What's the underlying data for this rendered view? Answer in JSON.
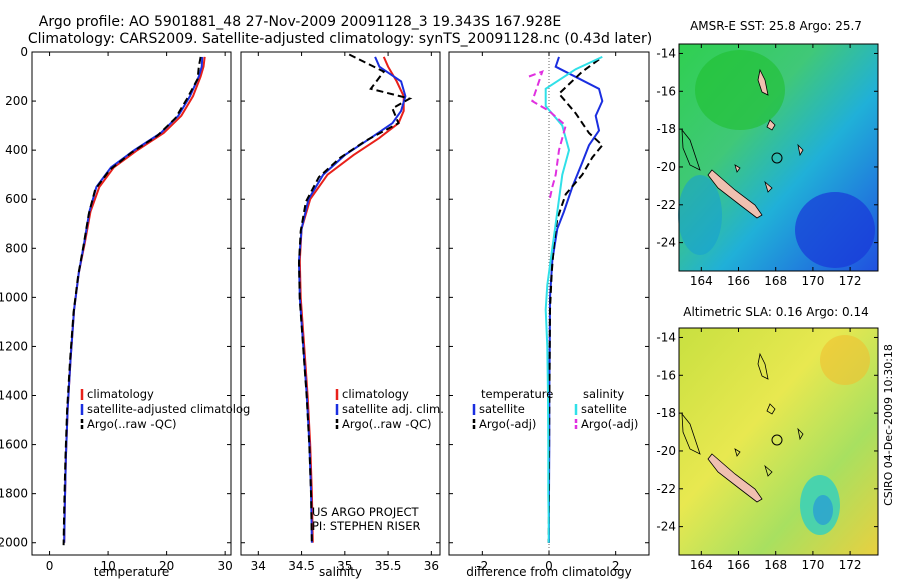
{
  "title_line1": "Argo profile: AO 5901881_48 27-Nov-2009 20091128_3 19.343S 167.928E",
  "title_line2": "Climatology: CARS2009. Satellite-adjusted climatology: synTS_20091128.nc (0.43d later)",
  "side_label": "CSIRO 04-Dec-2009 10:30:18",
  "colors": {
    "climatology": "#e8201a",
    "satellite": "#1a2ee0",
    "argo": "#000000",
    "sal_satellite": "#30e0e8",
    "sal_argo": "#e030e0"
  },
  "chart_data": [
    {
      "type": "line",
      "xlabel": "temperature",
      "xlim": [
        -3,
        31
      ],
      "ylim": [
        2050,
        0
      ],
      "xticks": [
        "0",
        "10",
        "20",
        "30"
      ],
      "xtick_values": [
        0,
        10,
        20,
        30
      ],
      "yticks": [
        "0",
        "200",
        "400",
        "600",
        "800",
        "1000",
        "1200",
        "1400",
        "1600",
        "1800",
        "2000"
      ],
      "ytick_values": [
        0,
        200,
        400,
        600,
        800,
        1000,
        1200,
        1400,
        1600,
        1800,
        2000
      ],
      "legend": [
        "climatology",
        "satellite-adjusted climatolog",
        "Argo(..raw -QC)"
      ],
      "series": [
        {
          "name": "climatology",
          "style": "solid",
          "color": "#e8201a",
          "x": [
            26.5,
            26.3,
            25.8,
            24.5,
            22.5,
            19.5,
            15,
            11,
            8.5,
            7,
            6,
            5,
            4.2,
            3.6,
            3.1,
            2.8,
            2.6,
            2.5
          ],
          "y": [
            20,
            60,
            100,
            180,
            260,
            330,
            400,
            470,
            550,
            650,
            780,
            900,
            1050,
            1250,
            1450,
            1650,
            1850,
            2000
          ]
        },
        {
          "name": "satellite-adjusted climatolog",
          "style": "solid",
          "color": "#1a2ee0",
          "x": [
            26.1,
            26,
            25.5,
            24,
            22,
            19,
            14.5,
            10.5,
            8,
            6.8,
            5.9,
            5,
            4.2,
            3.6,
            3.1,
            2.8,
            2.6,
            2.5
          ],
          "y": [
            20,
            60,
            100,
            180,
            260,
            330,
            400,
            470,
            550,
            650,
            780,
            900,
            1050,
            1250,
            1450,
            1650,
            1850,
            2000
          ]
        },
        {
          "name": "Argo(..raw -QC)",
          "style": "dashed",
          "color": "#000000",
          "x": [
            25.8,
            25.5,
            25.3,
            23.5,
            21.5,
            18.5,
            14,
            10.3,
            7.8,
            6.7,
            5.8,
            4.9,
            4.1,
            3.5,
            3.0,
            2.7,
            2.5,
            2.4
          ],
          "y": [
            20,
            60,
            110,
            190,
            270,
            340,
            410,
            480,
            560,
            660,
            790,
            910,
            1060,
            1260,
            1460,
            1660,
            1860,
            2010
          ]
        }
      ]
    },
    {
      "type": "line",
      "xlabel": "salinity",
      "xlim": [
        33.8,
        36.1
      ],
      "ylim": [
        2050,
        0
      ],
      "xticks": [
        "34",
        "34.5",
        "35",
        "35.5",
        "36"
      ],
      "xtick_values": [
        34,
        34.5,
        35,
        35.5,
        36
      ],
      "legend": [
        "climatology",
        "satellite adj. clim.",
        "Argo(..raw -QC)"
      ],
      "annotations": [
        "US ARGO PROJECT",
        "PI: STEPHEN RISER"
      ],
      "series": [
        {
          "name": "climatology",
          "style": "solid",
          "color": "#e8201a",
          "x": [
            35.45,
            35.5,
            35.6,
            35.68,
            35.68,
            35.62,
            35.4,
            35.1,
            34.8,
            34.6,
            34.5,
            34.48,
            34.49,
            34.53,
            34.57,
            34.6,
            34.62,
            34.63
          ],
          "y": [
            20,
            60,
            120,
            180,
            240,
            290,
            350,
            420,
            500,
            600,
            720,
            850,
            1000,
            1200,
            1400,
            1600,
            1800,
            2000
          ]
        },
        {
          "name": "satellite adj. clim.",
          "style": "solid",
          "color": "#1a2ee0",
          "x": [
            35.35,
            35.4,
            35.65,
            35.7,
            35.65,
            35.55,
            35.3,
            35.0,
            34.75,
            34.58,
            34.5,
            34.47,
            34.48,
            34.52,
            34.56,
            34.59,
            34.61,
            34.62
          ],
          "y": [
            20,
            60,
            120,
            180,
            240,
            290,
            350,
            420,
            500,
            600,
            720,
            850,
            1000,
            1200,
            1400,
            1600,
            1800,
            2000
          ]
        },
        {
          "name": "Argo(..raw -QC)",
          "style": "dashed",
          "color": "#000000",
          "x": [
            35.05,
            35.45,
            35.3,
            35.75,
            35.55,
            35.62,
            35.25,
            34.95,
            34.7,
            34.55,
            34.49,
            34.47,
            34.48,
            34.52,
            34.56,
            34.59,
            34.61,
            34.62
          ],
          "y": [
            10,
            80,
            150,
            190,
            230,
            290,
            360,
            430,
            510,
            610,
            730,
            860,
            1010,
            1210,
            1410,
            1610,
            1810,
            2010
          ]
        }
      ]
    },
    {
      "type": "line",
      "xlabel": "difference from climatology",
      "xlim": [
        -3,
        3
      ],
      "ylim": [
        2050,
        0
      ],
      "xticks": [
        "-2",
        "0",
        "2"
      ],
      "xtick_values": [
        -2,
        0,
        2
      ],
      "legend": [
        "temperature",
        "satellite",
        "Argo(-adj)",
        "salinity",
        "satellite",
        "Argo(-adj)"
      ],
      "series": [
        {
          "name": "satellite",
          "group": "temperature",
          "style": "solid",
          "color": "#1a2ee0",
          "x": [
            0.3,
            0.2,
            1.5,
            1.6,
            1.4,
            1.5,
            1.2,
            1.0,
            0.7,
            0.45,
            0.25,
            0.1,
            0.03,
            0.02,
            0.01,
            0.01,
            0.0,
            0.0
          ],
          "y": [
            20,
            60,
            150,
            200,
            260,
            320,
            380,
            450,
            550,
            650,
            720,
            850,
            1000,
            1200,
            1400,
            1600,
            1800,
            2000
          ]
        },
        {
          "name": "Argo(-adj)",
          "group": "temperature",
          "style": "dashed",
          "color": "#000000",
          "x": [
            1.5,
            1.0,
            0.3,
            0.8,
            1.2,
            1.6,
            1.3,
            1.0,
            0.5,
            0.25,
            0.15,
            0.08,
            0.03,
            0.02,
            0.01,
            0.0,
            0.0,
            -0.01
          ],
          "y": [
            30,
            80,
            170,
            250,
            330,
            380,
            430,
            500,
            580,
            680,
            780,
            900,
            1050,
            1250,
            1450,
            1650,
            1850,
            2000
          ]
        },
        {
          "name": "satellite",
          "group": "salinity",
          "style": "solid",
          "color": "#30e0e8",
          "x": [
            1.6,
            0.8,
            -0.1,
            -0.1,
            0.4,
            0.6,
            0.4,
            0.3,
            0.2,
            0.1,
            -0.05,
            -0.1,
            -0.05,
            -0.03,
            -0.02,
            -0.02,
            -0.01,
            -0.01
          ],
          "y": [
            20,
            70,
            150,
            220,
            300,
            400,
            500,
            600,
            700,
            800,
            950,
            1050,
            1200,
            1400,
            1600,
            1800,
            1900,
            2000
          ]
        },
        {
          "name": "Argo(-adj)",
          "group": "salinity",
          "style": "dashed",
          "color": "#e030e0",
          "x": [
            -0.6,
            -0.2,
            -0.5,
            0.0,
            0.5,
            0.3,
            0.2,
            0.1,
            0.02
          ],
          "y": [
            100,
            80,
            200,
            240,
            300,
            400,
            500,
            550,
            600
          ]
        }
      ]
    },
    {
      "type": "heatmap",
      "title": "AMSR-E SST: 25.8 Argo: 25.7",
      "xticks": [
        "164",
        "166",
        "168",
        "170",
        "172"
      ],
      "xtick_values": [
        164,
        166,
        168,
        170,
        172
      ],
      "yticks": [
        "-14",
        "-16",
        "-18",
        "-20",
        "-22",
        "-24"
      ],
      "ytick_values": [
        -14,
        -16,
        -18,
        -20,
        -22,
        -24
      ],
      "xlim": [
        162.8,
        173.5
      ],
      "ylim": [
        -25.5,
        -13.5
      ],
      "argo_location": [
        167.928,
        -19.343
      ]
    },
    {
      "type": "heatmap",
      "title": "Altimetric SLA: 0.16 Argo: 0.14",
      "xticks": [
        "164",
        "166",
        "168",
        "170",
        "172"
      ],
      "xtick_values": [
        164,
        166,
        168,
        170,
        172
      ],
      "yticks": [
        "-14",
        "-16",
        "-18",
        "-20",
        "-22",
        "-24"
      ],
      "ytick_values": [
        -14,
        -16,
        -18,
        -20,
        -22,
        -24
      ],
      "xlim": [
        162.8,
        173.5
      ],
      "ylim": [
        -25.5,
        -13.5
      ],
      "argo_location": [
        167.928,
        -19.343
      ]
    }
  ]
}
